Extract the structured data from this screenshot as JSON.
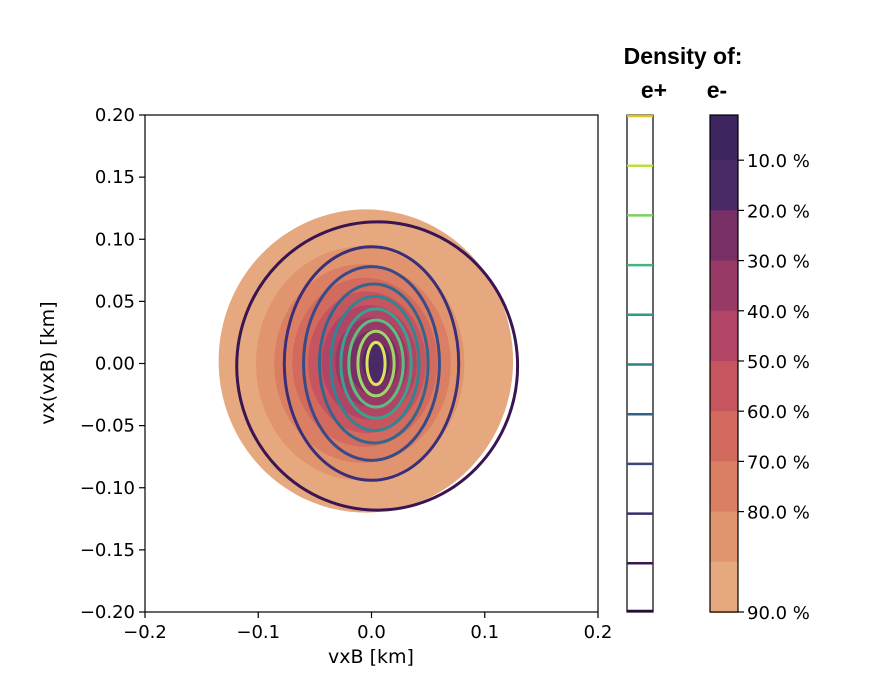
{
  "chart_data": {
    "type": "contour",
    "xlabel": "vxB [km]",
    "ylabel": "vx(vxB) [km]",
    "xlim": [
      -0.2,
      0.2
    ],
    "ylim": [
      -0.2,
      0.2
    ],
    "x_ticks": [
      "−0.2",
      "−0.1",
      "0.0",
      "0.1",
      "0.2"
    ],
    "x_tick_values": [
      -0.2,
      -0.1,
      0.0,
      0.1,
      0.2
    ],
    "y_ticks": [
      "0.20",
      "0.15",
      "0.10",
      "0.05",
      "0.00",
      "−0.05",
      "−0.10",
      "−0.15",
      "−0.20"
    ],
    "y_tick_values": [
      0.2,
      0.15,
      0.1,
      0.05,
      0.0,
      -0.05,
      -0.1,
      -0.15,
      -0.2
    ],
    "colorbar_header": "Density of:",
    "legend_positron": "e+",
    "legend_electron": "e-",
    "electron_levels": [
      {
        "label": "10.0 %",
        "level": 10,
        "color": "#4a2a66"
      },
      {
        "label": "20.0 %",
        "level": 20,
        "color": "#782f66"
      },
      {
        "label": "30.0 %",
        "level": 30,
        "color": "#983a66"
      },
      {
        "label": "40.0 %",
        "level": 40,
        "color": "#b24466"
      },
      {
        "label": "50.0 %",
        "level": 50,
        "color": "#c65560"
      },
      {
        "label": "60.0 %",
        "level": 60,
        "color": "#d36a5e"
      },
      {
        "label": "70.0 %",
        "level": 70,
        "color": "#db7f64"
      },
      {
        "label": "80.0 %",
        "level": 80,
        "color": "#e1956e"
      },
      {
        "label": "90.0 %",
        "level": 90,
        "color": "#e6a87e"
      }
    ],
    "electron_top_color": "#3d2660",
    "electron_fill_regions": [
      {
        "level": 90,
        "rx": 0.13,
        "ry": 0.122,
        "cx": -0.005,
        "cy": 0.002,
        "color": "#e6a87e"
      },
      {
        "level": 80,
        "rx": 0.092,
        "ry": 0.094,
        "cx": -0.01,
        "cy": 0.0,
        "color": "#e1956e"
      },
      {
        "level": 70,
        "rx": 0.078,
        "ry": 0.08,
        "cx": -0.008,
        "cy": 0.0,
        "color": "#db7f64"
      },
      {
        "level": 60,
        "rx": 0.064,
        "ry": 0.068,
        "cx": -0.006,
        "cy": 0.001,
        "color": "#d36a5e"
      },
      {
        "level": 50,
        "rx": 0.052,
        "ry": 0.057,
        "cx": -0.004,
        "cy": 0.001,
        "color": "#c65560"
      },
      {
        "level": 40,
        "rx": 0.042,
        "ry": 0.046,
        "cx": -0.002,
        "cy": 0.001,
        "color": "#b24466"
      },
      {
        "level": 30,
        "rx": 0.032,
        "ry": 0.036,
        "cx": 0.0,
        "cy": 0.001,
        "color": "#983a66"
      },
      {
        "level": 20,
        "rx": 0.022,
        "ry": 0.026,
        "cx": 0.002,
        "cy": 0.001,
        "color": "#782f66"
      },
      {
        "level": 10,
        "rx": 0.012,
        "ry": 0.016,
        "cx": 0.004,
        "cy": 0.001,
        "color": "#4a2a66"
      }
    ],
    "positron_contours": [
      {
        "level": 10,
        "rx": 0.008,
        "ry": 0.017,
        "cx": 0.004,
        "cy": 0.0,
        "color": "#dde35a"
      },
      {
        "level": 20,
        "rx": 0.016,
        "ry": 0.026,
        "cx": 0.004,
        "cy": 0.0,
        "color": "#9ed66a"
      },
      {
        "level": 30,
        "rx": 0.024,
        "ry": 0.035,
        "cx": 0.004,
        "cy": 0.0,
        "color": "#5cbf80"
      },
      {
        "level": 40,
        "rx": 0.031,
        "ry": 0.044,
        "cx": 0.004,
        "cy": 0.0,
        "color": "#3aa28c"
      },
      {
        "level": 50,
        "rx": 0.039,
        "ry": 0.054,
        "cx": 0.003,
        "cy": 0.0,
        "color": "#2f8590"
      },
      {
        "level": 60,
        "rx": 0.048,
        "ry": 0.064,
        "cx": 0.002,
        "cy": 0.0,
        "color": "#33668d"
      },
      {
        "level": 70,
        "rx": 0.06,
        "ry": 0.078,
        "cx": 0.0,
        "cy": 0.0,
        "color": "#3a4a86"
      },
      {
        "level": 80,
        "rx": 0.077,
        "ry": 0.094,
        "cx": 0.0,
        "cy": 0.0,
        "color": "#3b2e78"
      },
      {
        "level": 90,
        "rx": 0.124,
        "ry": 0.116,
        "cx": 0.005,
        "cy": -0.002,
        "color": "#3a1552"
      }
    ],
    "positron_bar_ticks": [
      {
        "level": 0,
        "color": "#e0c020"
      },
      {
        "level": 10,
        "color": "#b8de40"
      },
      {
        "level": 20,
        "color": "#7ad060"
      },
      {
        "level": 30,
        "color": "#45b57a"
      },
      {
        "level": 40,
        "color": "#2f9a88"
      },
      {
        "level": 50,
        "color": "#2e7f8c"
      },
      {
        "level": 60,
        "color": "#32628a"
      },
      {
        "level": 70,
        "color": "#384682"
      },
      {
        "level": 80,
        "color": "#3a2a6e"
      },
      {
        "level": 90,
        "color": "#3a1550"
      }
    ]
  }
}
